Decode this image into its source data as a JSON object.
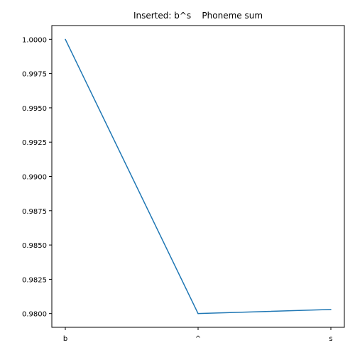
{
  "chart_data": {
    "type": "line",
    "title": "Inserted: b^s    Phoneme sum",
    "xlabel": "",
    "ylabel": "",
    "categories": [
      "b",
      "^",
      "s"
    ],
    "series": [
      {
        "values": [
          1.0,
          0.98,
          0.9803
        ]
      }
    ],
    "ylim": [
      0.979,
      1.001
    ],
    "yticks": [
      0.98,
      0.9825,
      0.985,
      0.9875,
      0.99,
      0.9925,
      0.995,
      0.9975,
      1.0
    ],
    "ytick_labels": [
      "0.9800",
      "0.9825",
      "0.9850",
      "0.9875",
      "0.9900",
      "0.9925",
      "0.9950",
      "0.9975",
      "1.0000"
    ],
    "grid": false,
    "legend": "none",
    "line_color": "#1f77b4"
  }
}
